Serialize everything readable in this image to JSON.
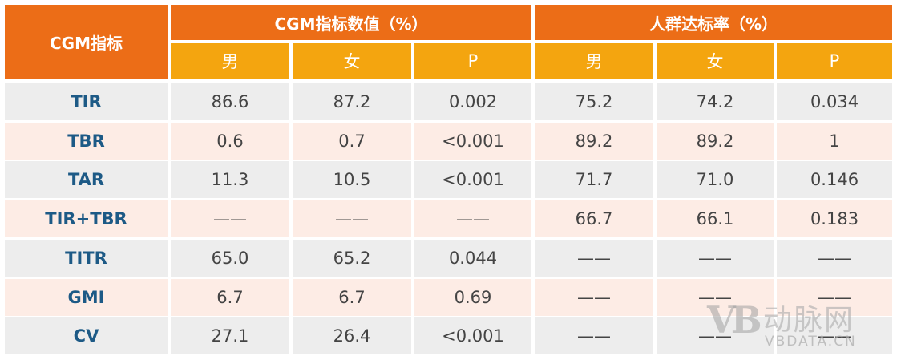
{
  "table": {
    "corner_label": "CGM指标",
    "group_headers": [
      "CGM指标数值（%）",
      "人群达标率（%）"
    ],
    "sub_headers": [
      "男",
      "女",
      "P",
      "男",
      "女",
      "P"
    ],
    "rows": [
      {
        "metric": "TIR",
        "values": [
          "86.6",
          "87.2",
          "0.002",
          "75.2",
          "74.2",
          "0.034"
        ]
      },
      {
        "metric": "TBR",
        "values": [
          "0.6",
          "0.7",
          "<0.001",
          "89.2",
          "89.2",
          "1"
        ]
      },
      {
        "metric": "TAR",
        "values": [
          "11.3",
          "10.5",
          "<0.001",
          "71.7",
          "71.0",
          "0.146"
        ]
      },
      {
        "metric": "TIR+TBR",
        "values": [
          "——",
          "——",
          "——",
          "66.7",
          "66.1",
          "0.183"
        ]
      },
      {
        "metric": "TITR",
        "values": [
          "65.0",
          "65.2",
          "0.044",
          "——",
          "——",
          "——"
        ]
      },
      {
        "metric": "GMI",
        "values": [
          "6.7",
          "6.7",
          "0.69",
          "——",
          "——",
          "——"
        ]
      },
      {
        "metric": "CV",
        "values": [
          "27.1",
          "26.4",
          "<0.001",
          "——",
          "——",
          "——"
        ]
      }
    ]
  },
  "watermark": {
    "logo": "VB",
    "cn": "动脉网",
    "en": "VBDATA.CN"
  },
  "colors": {
    "header_dark": "#ec6d17",
    "header_light": "#f4a50f",
    "row_gray": "#ededed",
    "row_pink": "#fdece5",
    "metric_text": "#1d5a86"
  }
}
